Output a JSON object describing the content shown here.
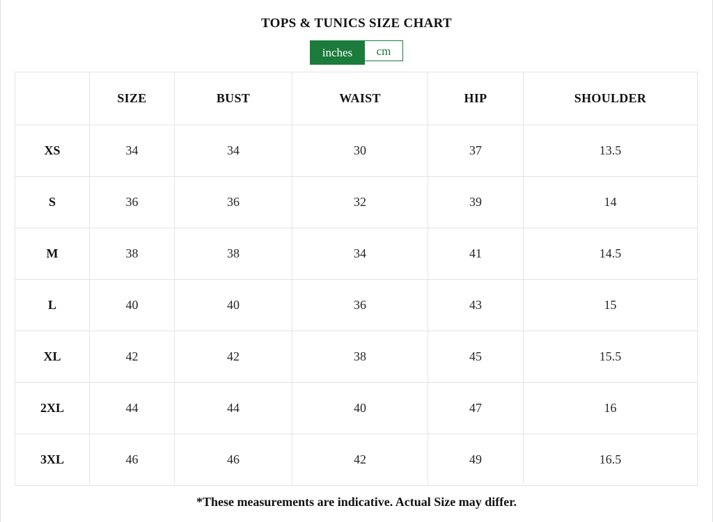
{
  "title": "TOPS & TUNICS SIZE CHART",
  "unit_toggle": {
    "selected": "inches",
    "options": [
      {
        "label": "inches",
        "selected": true
      },
      {
        "label": "cm",
        "selected": false
      }
    ]
  },
  "size_chart": {
    "columns": [
      "",
      "SIZE",
      "BUST",
      "WAIST",
      "HIP",
      "SHOULDER"
    ],
    "rows": [
      {
        "label": "XS",
        "values": [
          "34",
          "34",
          "30",
          "37",
          "13.5"
        ]
      },
      {
        "label": "S",
        "values": [
          "36",
          "36",
          "32",
          "39",
          "14"
        ]
      },
      {
        "label": "M",
        "values": [
          "38",
          "38",
          "34",
          "41",
          "14.5"
        ]
      },
      {
        "label": "L",
        "values": [
          "40",
          "40",
          "36",
          "43",
          "15"
        ]
      },
      {
        "label": "XL",
        "values": [
          "42",
          "42",
          "38",
          "45",
          "15.5"
        ]
      },
      {
        "label": "2XL",
        "values": [
          "44",
          "44",
          "40",
          "47",
          "16"
        ]
      },
      {
        "label": "3XL",
        "values": [
          "46",
          "46",
          "42",
          "49",
          "16.5"
        ]
      }
    ]
  },
  "footnote": "*These measurements are indicative. Actual Size may differ.",
  "colors": {
    "accent_green": "#1b7b3b",
    "table_border": "#e4e4e4",
    "text": "#111111"
  }
}
